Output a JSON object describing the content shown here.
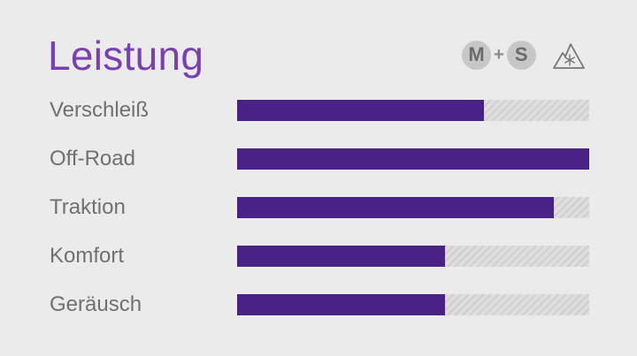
{
  "title": "Leistung",
  "badges": {
    "ms_left": "M",
    "ms_plus": "+",
    "ms_right": "S",
    "snowflake_mountain": "three-peak-mountain-snowflake-icon"
  },
  "colors": {
    "title": "#7a3fb0",
    "bar_fill": "#4a2185",
    "track": "#d8d8d8",
    "background": "#ebebeb"
  },
  "ratings": [
    {
      "label": "Verschleiß",
      "value": 0.7
    },
    {
      "label": "Off-Road",
      "value": 1.0
    },
    {
      "label": "Traktion",
      "value": 0.9
    },
    {
      "label": "Komfort",
      "value": 0.59
    },
    {
      "label": "Geräusch",
      "value": 0.59
    }
  ]
}
